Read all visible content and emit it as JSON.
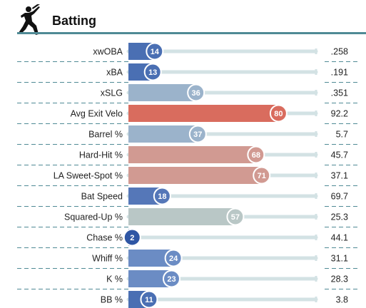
{
  "header": {
    "title": "Batting",
    "icon": "baseball-batter-icon"
  },
  "colors": {
    "accent_rule": "#4f8a95",
    "track": "#d3e2e4",
    "divider": "#4f8a95"
  },
  "chart_data": {
    "type": "bar",
    "orientation": "horizontal",
    "title": "Batting",
    "xlim": [
      0,
      100
    ],
    "grid": false,
    "categories": [
      "xwOBA",
      "xBA",
      "xSLG",
      "Avg Exit Velo",
      "Barrel %",
      "Hard-Hit %",
      "LA Sweet-Spot %",
      "Bat Speed",
      "Squared-Up %",
      "Chase %",
      "Whiff %",
      "K %",
      "BB %"
    ],
    "series": [
      {
        "values": [
          14,
          13,
          36,
          80,
          37,
          68,
          71,
          18,
          57,
          2,
          24,
          23,
          11
        ],
        "colors": [
          "#4a6fb3",
          "#4a6fb3",
          "#9bb3cb",
          "#d96c5e",
          "#9bb3cb",
          "#d19a92",
          "#d19a92",
          "#5577b8",
          "#b9c7c6",
          "#2f56a4",
          "#6b8cc4",
          "#6b8cc4",
          "#4a6fb3"
        ]
      }
    ],
    "stat_values": [
      ".258",
      ".191",
      ".351",
      "92.2",
      "5.7",
      "45.7",
      "37.1",
      "69.7",
      "25.3",
      "44.1",
      "31.1",
      "28.3",
      "3.8"
    ]
  }
}
